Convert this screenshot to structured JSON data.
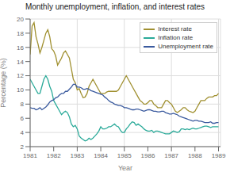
{
  "chart_data": {
    "type": "line",
    "title": "Monthly unemployment, inflation, and interest rates",
    "xlabel": "Year",
    "ylabel": "Percentage (%)",
    "x": [
      1981,
      1981.0833333333333,
      1981.1666666666667,
      1981.25,
      1981.3333333333333,
      1981.4166666666667,
      1981.5,
      1981.5833333333333,
      1981.6666666666667,
      1981.75,
      1981.8333333333333,
      1981.9166666666667,
      1982,
      1982.0833333333333,
      1982.1666666666667,
      1982.25,
      1982.3333333333333,
      1982.4166666666667,
      1982.5,
      1982.5833333333333,
      1982.6666666666667,
      1982.75,
      1982.8333333333333,
      1982.9166666666667,
      1983,
      1983.0833333333333,
      1983.1666666666667,
      1983.25,
      1983.3333333333333,
      1983.4166666666667,
      1983.5,
      1983.5833333333333,
      1983.6666666666667,
      1983.75,
      1983.8333333333333,
      1983.9166666666667,
      1984,
      1984.0833333333333,
      1984.1666666666667,
      1984.25,
      1984.3333333333333,
      1984.4166666666667,
      1984.5,
      1984.5833333333333,
      1984.6666666666667,
      1984.75,
      1984.8333333333333,
      1984.9166666666667,
      1985,
      1985.0833333333333,
      1985.1666666666667,
      1985.25,
      1985.3333333333333,
      1985.4166666666667,
      1985.5,
      1985.5833333333333,
      1985.6666666666667,
      1985.75,
      1985.8333333333333,
      1985.9166666666667,
      1986,
      1986.0833333333333,
      1986.1666666666667,
      1986.25,
      1986.3333333333333,
      1986.4166666666667,
      1986.5,
      1986.5833333333333,
      1986.6666666666667,
      1986.75,
      1986.8333333333333,
      1986.9166666666667,
      1987,
      1987.0833333333333,
      1987.1666666666667,
      1987.25,
      1987.3333333333333,
      1987.4166666666667,
      1987.5,
      1987.5833333333333,
      1987.6666666666667,
      1987.75,
      1987.8333333333333,
      1987.9166666666667,
      1988,
      1988.0833333333333,
      1988.1666666666667,
      1988.25,
      1988.3333333333333,
      1988.4166666666667,
      1988.5,
      1988.5833333333333,
      1988.6666666666667,
      1988.75,
      1988.8333333333333,
      1988.9166666666667,
      1989
    ],
    "series": [
      {
        "name": "Interest rate",
        "color": "#a09030",
        "values": [
          15.0,
          19.0,
          19.5,
          17.5,
          16.5,
          15.2,
          16.0,
          17.0,
          18.0,
          18.5,
          17.5,
          15.8,
          15.5,
          14.8,
          13.5,
          14.0,
          14.5,
          15.2,
          15.5,
          15.0,
          14.5,
          13.0,
          11.5,
          11.0,
          10.0,
          10.2,
          9.5,
          8.9,
          9.0,
          9.5,
          10.5,
          11.0,
          11.5,
          11.0,
          10.5,
          10.0,
          9.5,
          9.5,
          9.5,
          9.7,
          9.8,
          9.8,
          9.8,
          9.8,
          9.8,
          10.0,
          10.5,
          11.0,
          11.5,
          12.0,
          11.5,
          11.0,
          10.5,
          10.0,
          9.5,
          9.0,
          8.5,
          8.3,
          8.0,
          8.0,
          8.2,
          8.5,
          8.5,
          8.0,
          7.8,
          7.5,
          7.5,
          7.5,
          8.0,
          8.5,
          8.5,
          8.2,
          8.0,
          7.5,
          7.0,
          6.8,
          7.0,
          7.2,
          7.5,
          7.5,
          7.2,
          7.0,
          6.9,
          6.8,
          7.0,
          7.5,
          8.0,
          8.5,
          8.5,
          8.5,
          8.8,
          9.0,
          9.0,
          9.0,
          9.2,
          9.2,
          9.5
        ]
      },
      {
        "name": "Inflation rate",
        "color": "#2aaa99",
        "values": [
          11.5,
          11.0,
          10.5,
          10.0,
          9.5,
          9.5,
          10.5,
          11.5,
          12.0,
          11.5,
          10.5,
          9.8,
          8.5,
          8.0,
          7.5,
          7.0,
          6.5,
          6.8,
          7.0,
          6.8,
          6.2,
          5.2,
          4.8,
          5.0,
          4.5,
          3.5,
          3.2,
          3.0,
          2.8,
          2.9,
          3.2,
          3.0,
          3.2,
          3.5,
          3.8,
          4.2,
          4.8,
          4.5,
          4.5,
          4.6,
          4.8,
          4.8,
          5.0,
          5.2,
          4.9,
          4.8,
          4.3,
          4.0,
          4.0,
          4.5,
          4.8,
          5.2,
          5.5,
          5.4,
          5.0,
          5.2,
          5.0,
          4.8,
          4.5,
          4.3,
          4.2,
          4.2,
          4.3,
          4.0,
          4.2,
          4.2,
          4.1,
          4.0,
          3.9,
          3.8,
          3.8,
          3.8,
          4.0,
          4.2,
          4.1,
          4.0,
          4.1,
          4.5,
          4.5,
          4.4,
          4.5,
          4.4,
          4.5,
          4.6,
          4.5,
          4.5,
          4.6,
          4.7,
          4.8,
          4.9,
          4.9,
          4.8,
          4.7,
          4.8,
          4.8,
          4.8,
          4.8
        ]
      },
      {
        "name": "Unemployment rate",
        "color": "#3a5a9e",
        "values": [
          7.5,
          7.4,
          7.4,
          7.2,
          7.3,
          7.5,
          7.2,
          7.4,
          7.6,
          7.9,
          8.3,
          8.5,
          8.6,
          8.9,
          9.0,
          9.3,
          9.5,
          9.5,
          9.8,
          9.8,
          10.1,
          10.4,
          10.8,
          10.8,
          10.4,
          10.4,
          10.3,
          10.1,
          10.1,
          10.2,
          10.1,
          9.9,
          9.8,
          9.7,
          9.6,
          9.5,
          9.4,
          9.3,
          9.0,
          8.8,
          8.5,
          8.3,
          8.2,
          8.0,
          7.9,
          7.8,
          7.8,
          7.7,
          7.5,
          7.5,
          7.4,
          7.3,
          7.2,
          7.2,
          7.3,
          7.3,
          7.2,
          7.1,
          7.0,
          7.1,
          7.2,
          7.2,
          7.1,
          7.0,
          7.0,
          6.9,
          6.9,
          7.0,
          7.0,
          6.8,
          6.7,
          6.6,
          6.6,
          6.7,
          6.6,
          6.5,
          6.3,
          6.2,
          6.1,
          6.0,
          5.9,
          5.8,
          5.7,
          5.6,
          5.7,
          5.7,
          5.6,
          5.6,
          5.5,
          5.4,
          5.4,
          5.4,
          5.5,
          5.3,
          5.3,
          5.4,
          5.4
        ]
      }
    ],
    "xlim": [
      1981,
      1989.0833333333333
    ],
    "xticks": [
      1981,
      1982,
      1983,
      1984,
      1985,
      1986,
      1987,
      1988,
      1989
    ],
    "ylim": [
      2,
      20
    ],
    "yticks": [
      2,
      4,
      6,
      8,
      10,
      12,
      14,
      16,
      18,
      20
    ],
    "grid": true,
    "legend": "upper right"
  }
}
